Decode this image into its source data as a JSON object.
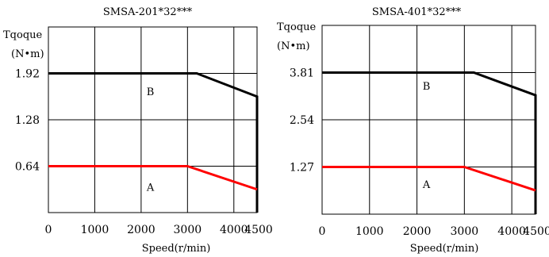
{
  "chart_data": [
    {
      "type": "line",
      "title": "SMSA-201*32***",
      "ylabel_line1": "Tqoque",
      "ylabel_line2": "(N•m)",
      "xlabel": "Speed(r/min)",
      "xlim": [
        0,
        4500
      ],
      "ylim": [
        0,
        2.56
      ],
      "x_ticks": [
        {
          "value": 0,
          "label": "0"
        },
        {
          "value": 1000,
          "label": "1000"
        },
        {
          "value": 2000,
          "label": "2000"
        },
        {
          "value": 3000,
          "label": "3000"
        },
        {
          "value": 4000,
          "label": "4000"
        },
        {
          "value": 4500,
          "label": "4500"
        }
      ],
      "y_ticks": [
        {
          "value": 0.64,
          "label": "0.64"
        },
        {
          "value": 1.28,
          "label": "1.28"
        },
        {
          "value": 1.92,
          "label": "1.92"
        }
      ],
      "grid": true,
      "regions": [
        {
          "label": "B",
          "x": 2200,
          "y": 1.62
        },
        {
          "label": "A",
          "x": 2200,
          "y": 0.3
        }
      ],
      "series": [
        {
          "color": "#000000",
          "x": [
            0,
            3200,
            4500,
            4500
          ],
          "y": [
            1.92,
            1.92,
            1.6,
            0
          ]
        },
        {
          "color": "#ff0000",
          "x": [
            0,
            3000,
            4500
          ],
          "y": [
            0.64,
            0.64,
            0.32
          ]
        }
      ]
    },
    {
      "type": "line",
      "title": "SMSA-401*32***",
      "ylabel_line1": "Tqoque",
      "ylabel_line2": "(N•m)",
      "xlabel": "Speed(r/min)",
      "xlim": [
        0,
        4500
      ],
      "ylim": [
        0,
        5.08
      ],
      "x_ticks": [
        {
          "value": 0,
          "label": "0"
        },
        {
          "value": 1000,
          "label": "1000"
        },
        {
          "value": 2000,
          "label": "2000"
        },
        {
          "value": 3000,
          "label": "3000"
        },
        {
          "value": 4000,
          "label": "4000"
        },
        {
          "value": 4500,
          "label": "4500"
        }
      ],
      "y_ticks": [
        {
          "value": 1.27,
          "label": "1.27"
        },
        {
          "value": 2.54,
          "label": "2.54"
        },
        {
          "value": 3.81,
          "label": "3.81"
        }
      ],
      "grid": true,
      "regions": [
        {
          "label": "B",
          "x": 2200,
          "y": 3.35
        },
        {
          "label": "A",
          "x": 2200,
          "y": 0.7
        }
      ],
      "series": [
        {
          "color": "#000000",
          "x": [
            0,
            3200,
            4500,
            4500
          ],
          "y": [
            3.81,
            3.81,
            3.2,
            0
          ]
        },
        {
          "color": "#ff0000",
          "x": [
            0,
            3000,
            4500
          ],
          "y": [
            1.27,
            1.27,
            0.64
          ]
        }
      ]
    }
  ]
}
